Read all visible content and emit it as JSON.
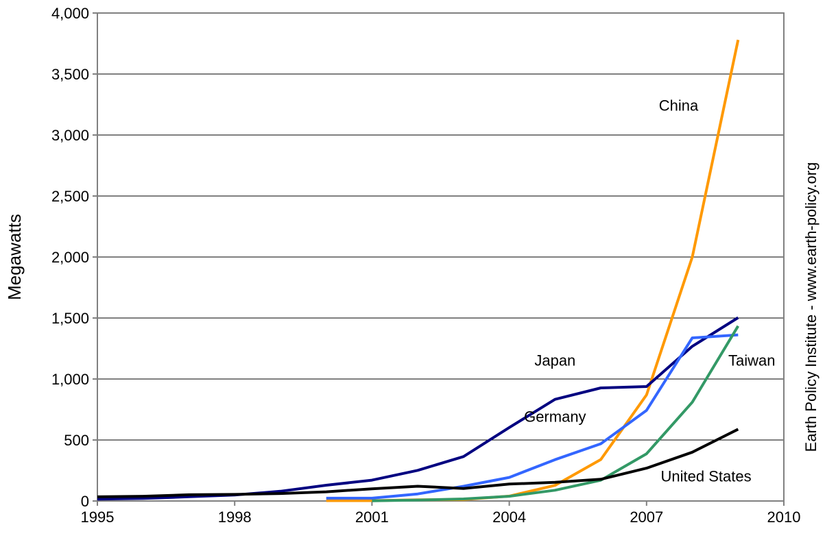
{
  "chart_data": {
    "type": "line",
    "title": "",
    "xlabel": "",
    "ylabel": "Megawatts",
    "credit": "Earth Policy Institute - www.earth-policy.org",
    "xlim": [
      1995,
      2010
    ],
    "ylim": [
      0,
      4000
    ],
    "x_ticks": [
      {
        "value": 1995,
        "label": "1995"
      },
      {
        "value": 1998,
        "label": "1998"
      },
      {
        "value": 2001,
        "label": "2001"
      },
      {
        "value": 2004,
        "label": "2004"
      },
      {
        "value": 2007,
        "label": "2007"
      },
      {
        "value": 2010,
        "label": "2010"
      }
    ],
    "y_ticks": [
      {
        "value": 0,
        "label": "0"
      },
      {
        "value": 500,
        "label": "500"
      },
      {
        "value": 1000,
        "label": "1,000"
      },
      {
        "value": 1500,
        "label": "1,500"
      },
      {
        "value": 2000,
        "label": "2,000"
      },
      {
        "value": 2500,
        "label": "2,500"
      },
      {
        "value": 3000,
        "label": "3,000"
      },
      {
        "value": 3500,
        "label": "3,500"
      },
      {
        "value": 4000,
        "label": "4,000"
      }
    ],
    "grid": "horizontal",
    "series": [
      {
        "name": "China",
        "color": "#FF9900",
        "label_x": 2007.7,
        "label_y": 3200,
        "x": [
          2000,
          2001,
          2002,
          2003,
          2004,
          2005,
          2006,
          2007,
          2008,
          2009
        ],
        "values": [
          3,
          3,
          10,
          12,
          40,
          128,
          340,
          870,
          2000,
          3780
        ]
      },
      {
        "name": "Japan",
        "color": "#000080",
        "label_x": 2005.0,
        "label_y": 1110,
        "x": [
          1995,
          1996,
          1997,
          1998,
          1999,
          2000,
          2001,
          2002,
          2003,
          2004,
          2005,
          2006,
          2007,
          2008,
          2009
        ],
        "values": [
          16,
          21,
          35,
          49,
          80,
          129,
          171,
          251,
          364,
          602,
          833,
          927,
          938,
          1268,
          1503
        ]
      },
      {
        "name": "Germany",
        "color": "#3366FF",
        "label_x": 2005.0,
        "label_y": 650,
        "x": [
          2000,
          2001,
          2002,
          2003,
          2004,
          2005,
          2006,
          2007,
          2008,
          2009
        ],
        "values": [
          23,
          23,
          58,
          121,
          193,
          339,
          469,
          743,
          1337,
          1362
        ]
      },
      {
        "name": "Taiwan",
        "color": "#339966",
        "label_x": 2009.3,
        "label_y": 1110,
        "x": [
          2001,
          2002,
          2003,
          2004,
          2005,
          2006,
          2007,
          2008,
          2009
        ],
        "values": [
          1,
          8,
          17,
          39,
          88,
          170,
          387,
          810,
          1434
        ]
      },
      {
        "name": "United States",
        "color": "#000000",
        "label_x": 2008.3,
        "label_y": 160,
        "x": [
          1995,
          1996,
          1997,
          1998,
          1999,
          2000,
          2001,
          2002,
          2003,
          2004,
          2005,
          2006,
          2007,
          2008,
          2009
        ],
        "values": [
          34,
          39,
          51,
          54,
          61,
          75,
          100,
          121,
          103,
          139,
          153,
          178,
          269,
          400,
          588
        ]
      }
    ]
  }
}
